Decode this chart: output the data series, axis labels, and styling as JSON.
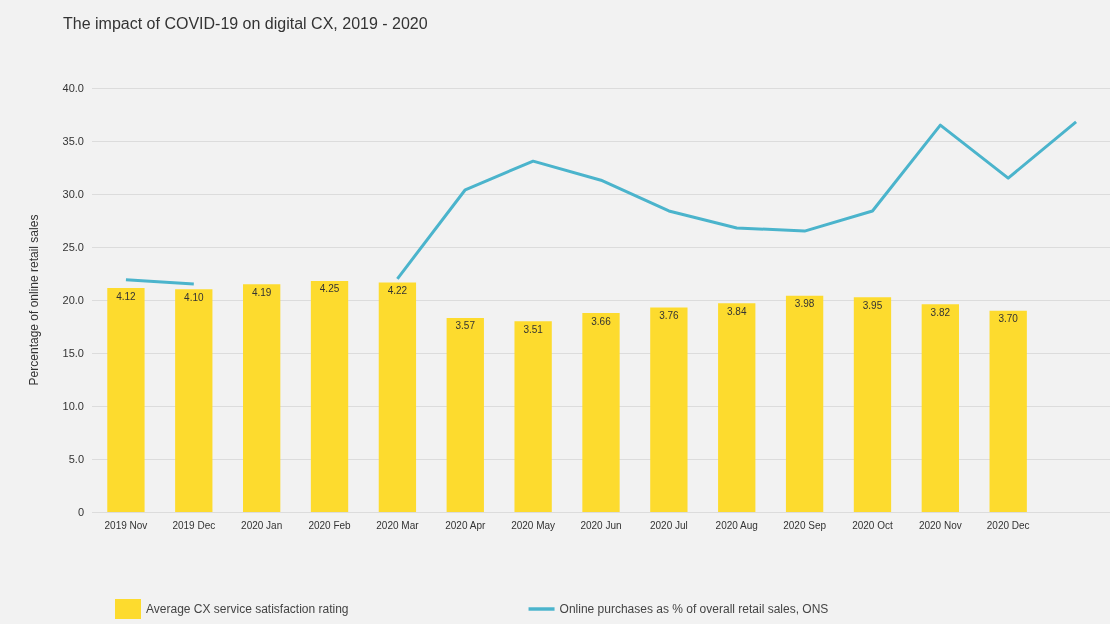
{
  "chart_data": {
    "type": "bar",
    "title": "The impact of COVID-19 on digital CX, 2019 - 2020",
    "ylabel": "Percentage of online retail sales",
    "categories": [
      "2019 Nov",
      "2019 Dec",
      "2020 Jan",
      "2020 Feb",
      "2020 Mar",
      "2020 Apr",
      "2020 May",
      "2020 Jun",
      "2020 Jul",
      "2020 Aug",
      "2020 Sep",
      "2020 Oct",
      "2020 Nov",
      "2020 Dec",
      null
    ],
    "series": [
      {
        "name": "Average CX service satisfaction rating",
        "axis": "y2",
        "color": "#fddb2e",
        "values": [
          4.12,
          4.1,
          4.19,
          4.25,
          4.22,
          3.57,
          3.51,
          3.66,
          3.76,
          3.84,
          3.98,
          3.95,
          3.82,
          3.7,
          null
        ],
        "value_labels": [
          "4.12",
          "4.10",
          "4.19",
          "4.25",
          "4.22",
          "3.57",
          "3.51",
          "3.66",
          "3.76",
          "3.84",
          "3.98",
          "3.95",
          "3.82",
          "3.70",
          null
        ]
      },
      {
        "name": "Online purchases as % of overall retail sales, ONS",
        "type": "line",
        "color": "#4bb4cc",
        "marker": "none",
        "values": [
          21.9,
          21.5,
          null,
          null,
          22.0,
          30.4,
          33.1,
          31.3,
          28.4,
          26.8,
          26.5,
          28.4,
          36.5,
          31.5,
          36.8
        ]
      }
    ],
    "ylim": [
      0,
      40
    ],
    "yticks": [
      {
        "value": 0,
        "label": "0"
      },
      {
        "value": 5,
        "label": "5.0"
      },
      {
        "value": 10,
        "label": "10.0"
      },
      {
        "value": 15,
        "label": "15.0"
      },
      {
        "value": 20,
        "label": "20.0"
      },
      {
        "value": 25,
        "label": "25.0"
      },
      {
        "value": 30,
        "label": "30.0"
      },
      {
        "value": 35,
        "label": "35.0"
      },
      {
        "value": 40,
        "label": "40.0"
      }
    ],
    "y2lim": [
      0,
      7.8
    ],
    "grid": "y",
    "legend": "bottom"
  }
}
